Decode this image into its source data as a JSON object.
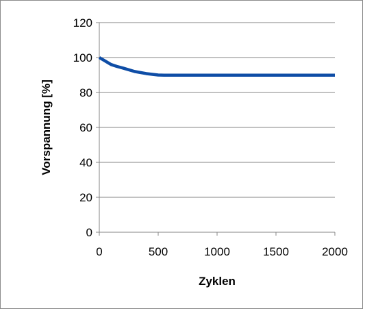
{
  "chart_data": {
    "type": "line",
    "title": "",
    "xlabel": "Zyklen",
    "ylabel": "Vorspannung [%]",
    "xlim": [
      0,
      2000
    ],
    "ylim": [
      0,
      120
    ],
    "x_ticks": [
      "0",
      "500",
      "1000",
      "1500",
      "2000"
    ],
    "y_ticks": [
      "0",
      "20",
      "40",
      "60",
      "80",
      "100",
      "120"
    ],
    "grid": "horizontal",
    "legend": "none",
    "series": [
      {
        "color": "#0e4da6",
        "x": [
          0,
          50,
          100,
          150,
          200,
          300,
          400,
          500,
          550,
          600,
          1000,
          1500,
          2000
        ],
        "y": [
          100,
          98,
          96,
          94.9,
          94,
          92,
          90.8,
          90,
          89.9,
          89.9,
          89.9,
          89.9,
          89.9
        ]
      }
    ]
  }
}
